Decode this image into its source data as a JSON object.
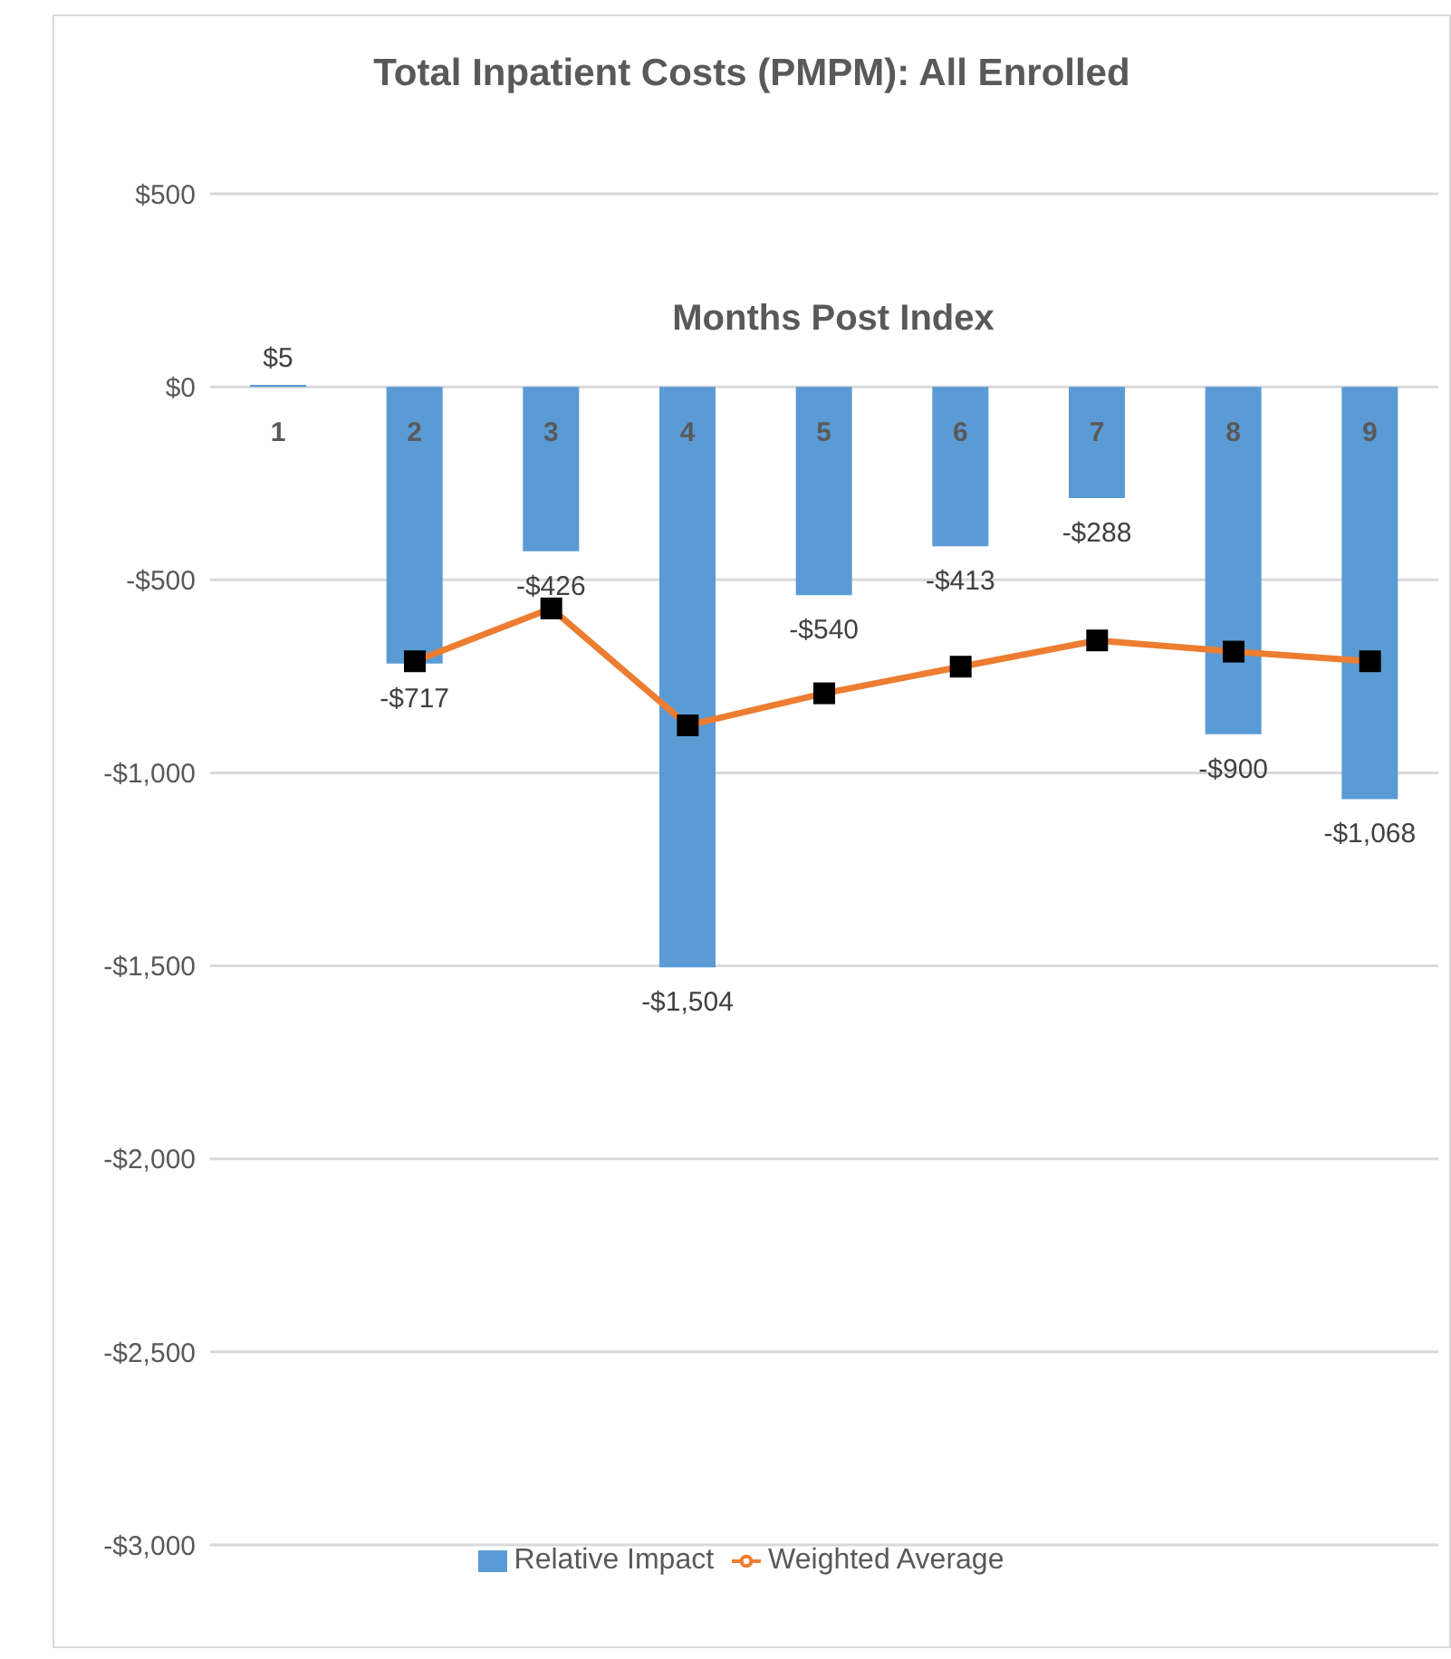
{
  "chart_data": {
    "type": "bar",
    "title": "Total Inpatient Costs (PMPM): All Enrolled",
    "xlabel": "Months Post Index",
    "categories": [
      "1",
      "2",
      "3",
      "4",
      "5",
      "6",
      "7",
      "8",
      "9"
    ],
    "series": [
      {
        "name": "Relative Impact",
        "color": "#5b9bd5",
        "values": [
          5,
          -717,
          -426,
          -1504,
          -540,
          -413,
          -288,
          -900,
          -1068
        ],
        "value_labels": [
          "$5",
          "-$717",
          "-$426",
          "-$1,504",
          "-$540",
          "-$413",
          "-$288",
          "-$900",
          "-$1,068"
        ]
      },
      {
        "name": "Weighted Average",
        "type": "line",
        "color": "#ed7d31",
        "marker": "square",
        "values": [
          null,
          -711,
          -574,
          -877,
          -794,
          -725,
          -657,
          -686,
          -711
        ]
      }
    ],
    "ylim": [
      -3000,
      500
    ],
    "yticks": [
      {
        "value": 500,
        "label": "$500"
      },
      {
        "value": 0,
        "label": "$0"
      },
      {
        "value": -500,
        "label": "-$500"
      },
      {
        "value": -1000,
        "label": "-$1,000"
      },
      {
        "value": -1500,
        "label": "-$1,500"
      },
      {
        "value": -2000,
        "label": "-$2,000"
      },
      {
        "value": -2500,
        "label": "-$2,500"
      },
      {
        "value": -3000,
        "label": "-$3,000"
      }
    ],
    "grid": "y",
    "legend": "bottom"
  }
}
